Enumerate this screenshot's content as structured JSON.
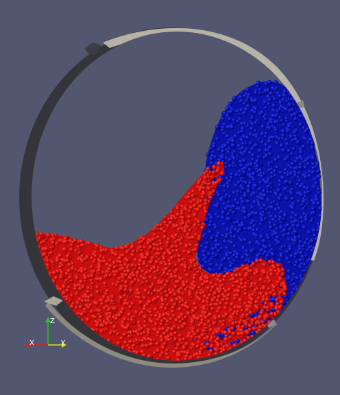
{
  "scene": {
    "description_colors": {
      "background": "#52566f",
      "drum_inner": "#b4b2a4",
      "drum_shadow": "#2f3136",
      "drum_edge": "#6c6b66",
      "particles_blue": "#0a12a8",
      "particles_blue_dark": "#05086a",
      "particles_red": "#d01010",
      "particles_red_dark": "#7a0606"
    },
    "axes": {
      "z_label": "Z",
      "x_label": "X",
      "y_label": "Y",
      "z_color": "#22cc22",
      "x_color": "#dd2222",
      "y_color": "#dddd22"
    }
  }
}
